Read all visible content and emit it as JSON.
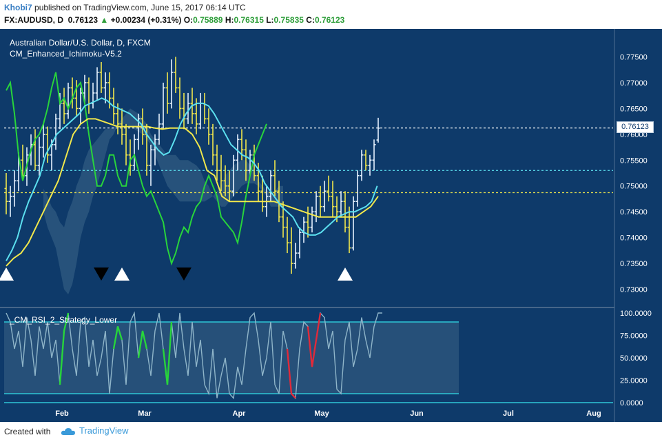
{
  "header": {
    "author": "Khobi7",
    "published": "published on TradingView.com, June 15, 2017 06:14 UTC",
    "symbol": "FX:AUDUSD, D",
    "last": "0.76123",
    "change": "+0.00234 (+0.31%)",
    "o_label": "O:",
    "o": "0.75889",
    "h_label": "H:",
    "h": "0.76315",
    "l_label": "L:",
    "l": "0.75835",
    "c_label": "C:",
    "c": "0.76123"
  },
  "legend": {
    "title": "Australian Dollar/U.S. Dollar, D, FXCM",
    "indicator": "CM_Enhanced_Ichimoku-V5.2",
    "lower_indicator": "_CM_RSI_2_Strategy_Lower"
  },
  "price_tag": "0.76123",
  "footer": {
    "created": "Created with",
    "brand": "TradingView"
  },
  "colors": {
    "panel_bg": "#0e3a6a",
    "cloud": "#3d6688",
    "cloud_dark": "#5a6e78",
    "tenkan": "#5ce1f0",
    "kijun": "#f2e84b",
    "chikou": "#28d43b",
    "bar_up": "#e6f2ff",
    "bar_down": "#f2e84b",
    "rsi_line": "#8fb5c9",
    "rsi_overbought": "#e02a3a",
    "rsi_oversold": "#28d43b",
    "grid_level": "#2fc6d6"
  },
  "chart_data": [
    {
      "type": "candlestick",
      "title": "Australian Dollar/U.S. Dollar, D, FXCM",
      "x_tick_labels": [
        "Feb",
        "Mar",
        "Apr",
        "May",
        "Jun",
        "Jul",
        "Aug"
      ],
      "y_tick_labels": [
        "0.77500",
        "0.77000",
        "0.76500",
        "0.76000",
        "0.75500",
        "0.75000",
        "0.74500",
        "0.74000",
        "0.73500",
        "0.73000"
      ],
      "ylim": [
        0.727,
        0.778
      ],
      "bars": [
        [
          0.7495,
          0.7525,
          0.7445,
          0.747
        ],
        [
          0.747,
          0.75,
          0.744,
          0.748
        ],
        [
          0.748,
          0.753,
          0.746,
          0.751
        ],
        [
          0.751,
          0.7565,
          0.749,
          0.755
        ],
        [
          0.755,
          0.758,
          0.751,
          0.752
        ],
        [
          0.752,
          0.7575,
          0.75,
          0.756
        ],
        [
          0.756,
          0.76,
          0.754,
          0.758
        ],
        [
          0.758,
          0.761,
          0.753,
          0.754
        ],
        [
          0.754,
          0.7595,
          0.752,
          0.7575
        ],
        [
          0.7575,
          0.762,
          0.7555,
          0.76
        ],
        [
          0.76,
          0.7615,
          0.7545,
          0.756
        ],
        [
          0.756,
          0.759,
          0.753,
          0.758
        ],
        [
          0.758,
          0.764,
          0.757,
          0.763
        ],
        [
          0.763,
          0.768,
          0.761,
          0.766
        ],
        [
          0.766,
          0.769,
          0.762,
          0.764
        ],
        [
          0.764,
          0.77,
          0.763,
          0.769
        ],
        [
          0.769,
          0.771,
          0.765,
          0.767
        ],
        [
          0.767,
          0.7705,
          0.7635,
          0.765
        ],
        [
          0.765,
          0.769,
          0.762,
          0.768
        ],
        [
          0.768,
          0.7715,
          0.766,
          0.77
        ],
        [
          0.77,
          0.771,
          0.764,
          0.766
        ],
        [
          0.766,
          0.77,
          0.765,
          0.768
        ],
        [
          0.768,
          0.773,
          0.7665,
          0.772
        ],
        [
          0.772,
          0.774,
          0.768,
          0.769
        ],
        [
          0.769,
          0.772,
          0.766,
          0.77
        ],
        [
          0.77,
          0.772,
          0.765,
          0.767
        ],
        [
          0.767,
          0.769,
          0.762,
          0.764
        ],
        [
          0.764,
          0.766,
          0.76,
          0.762
        ],
        [
          0.762,
          0.765,
          0.758,
          0.76
        ],
        [
          0.76,
          0.762,
          0.754,
          0.756
        ],
        [
          0.756,
          0.759,
          0.752,
          0.754
        ],
        [
          0.754,
          0.76,
          0.753,
          0.759
        ],
        [
          0.759,
          0.764,
          0.757,
          0.763
        ],
        [
          0.763,
          0.765,
          0.758,
          0.76
        ],
        [
          0.76,
          0.762,
          0.752,
          0.754
        ],
        [
          0.754,
          0.758,
          0.75,
          0.757
        ],
        [
          0.757,
          0.76,
          0.754,
          0.759
        ],
        [
          0.759,
          0.764,
          0.758,
          0.762
        ],
        [
          0.762,
          0.77,
          0.761,
          0.769
        ],
        [
          0.769,
          0.772,
          0.764,
          0.766
        ],
        [
          0.766,
          0.7745,
          0.765,
          0.772
        ],
        [
          0.772,
          0.775,
          0.768,
          0.769
        ],
        [
          0.769,
          0.771,
          0.763,
          0.765
        ],
        [
          0.765,
          0.768,
          0.761,
          0.763
        ],
        [
          0.763,
          0.768,
          0.762,
          0.766
        ],
        [
          0.766,
          0.769,
          0.762,
          0.764
        ],
        [
          0.764,
          0.767,
          0.76,
          0.762
        ],
        [
          0.762,
          0.768,
          0.761,
          0.766
        ],
        [
          0.766,
          0.768,
          0.762,
          0.763
        ],
        [
          0.763,
          0.765,
          0.758,
          0.76
        ],
        [
          0.76,
          0.762,
          0.754,
          0.756
        ],
        [
          0.756,
          0.758,
          0.751,
          0.753
        ],
        [
          0.753,
          0.756,
          0.749,
          0.751
        ],
        [
          0.751,
          0.754,
          0.748,
          0.75
        ],
        [
          0.75,
          0.753,
          0.747,
          0.749
        ],
        [
          0.749,
          0.756,
          0.748,
          0.755
        ],
        [
          0.755,
          0.76,
          0.753,
          0.759
        ],
        [
          0.759,
          0.761,
          0.755,
          0.757
        ],
        [
          0.757,
          0.759,
          0.751,
          0.753
        ],
        [
          0.753,
          0.757,
          0.752,
          0.756
        ],
        [
          0.756,
          0.758,
          0.751,
          0.752
        ],
        [
          0.752,
          0.7545,
          0.747,
          0.749
        ],
        [
          0.749,
          0.752,
          0.745,
          0.746
        ],
        [
          0.746,
          0.75,
          0.744,
          0.748
        ],
        [
          0.748,
          0.753,
          0.747,
          0.752
        ],
        [
          0.752,
          0.755,
          0.748,
          0.749
        ],
        [
          0.749,
          0.751,
          0.743,
          0.744
        ],
        [
          0.744,
          0.747,
          0.74,
          0.742
        ],
        [
          0.742,
          0.744,
          0.737,
          0.739
        ],
        [
          0.739,
          0.742,
          0.733,
          0.735
        ],
        [
          0.735,
          0.739,
          0.734,
          0.737
        ],
        [
          0.737,
          0.742,
          0.736,
          0.741
        ],
        [
          0.741,
          0.744,
          0.739,
          0.743
        ],
        [
          0.743,
          0.746,
          0.74,
          0.742
        ],
        [
          0.742,
          0.746,
          0.741,
          0.745
        ],
        [
          0.745,
          0.749,
          0.743,
          0.748
        ],
        [
          0.748,
          0.75,
          0.744,
          0.746
        ],
        [
          0.746,
          0.751,
          0.745,
          0.749
        ],
        [
          0.749,
          0.752,
          0.747,
          0.748
        ],
        [
          0.748,
          0.751,
          0.744,
          0.746
        ],
        [
          0.746,
          0.748,
          0.743,
          0.745
        ],
        [
          0.745,
          0.749,
          0.744,
          0.747
        ],
        [
          0.747,
          0.749,
          0.741,
          0.742
        ],
        [
          0.742,
          0.746,
          0.737,
          0.738
        ],
        [
          0.738,
          0.748,
          0.7375,
          0.747
        ],
        [
          0.747,
          0.753,
          0.746,
          0.752
        ],
        [
          0.752,
          0.757,
          0.751,
          0.756
        ],
        [
          0.756,
          0.757,
          0.753,
          0.754
        ],
        [
          0.754,
          0.756,
          0.752,
          0.755
        ],
        [
          0.755,
          0.759,
          0.753,
          0.758
        ],
        [
          0.7589,
          0.7632,
          0.7584,
          0.7612
        ]
      ],
      "tenkan": [
        0.7355,
        0.7375,
        0.74,
        0.744,
        0.747,
        0.7495,
        0.752,
        0.756,
        0.758,
        0.76,
        0.761,
        0.762,
        0.763,
        0.764,
        0.7655,
        0.766,
        0.7665,
        0.767,
        0.7665,
        0.7655,
        0.765,
        0.7645,
        0.764,
        0.763,
        0.762,
        0.76,
        0.7585,
        0.757,
        0.756,
        0.7565,
        0.759,
        0.762,
        0.764,
        0.7655,
        0.766,
        0.766,
        0.7655,
        0.764,
        0.762,
        0.76,
        0.758,
        0.757,
        0.756,
        0.7555,
        0.7545,
        0.753,
        0.7505,
        0.749,
        0.7475,
        0.746,
        0.745,
        0.744,
        0.742,
        0.741,
        0.7405,
        0.7405,
        0.741,
        0.742,
        0.743,
        0.744,
        0.7445,
        0.745,
        0.745,
        0.7455,
        0.746,
        0.747,
        0.75
      ],
      "kijun": [
        0.7345,
        0.736,
        0.737,
        0.739,
        0.742,
        0.745,
        0.748,
        0.751,
        0.7555,
        0.76,
        0.762,
        0.763,
        0.763,
        0.7625,
        0.762,
        0.7615,
        0.7615,
        0.7615,
        0.7615,
        0.7615,
        0.7612,
        0.761,
        0.7612,
        0.7612,
        0.7612,
        0.76,
        0.7575,
        0.753,
        0.752,
        0.748,
        0.747,
        0.747,
        0.747,
        0.747,
        0.747,
        0.747,
        0.747,
        0.7465,
        0.746,
        0.7455,
        0.745,
        0.7445,
        0.744,
        0.744,
        0.744,
        0.744,
        0.744,
        0.744,
        0.745,
        0.746,
        0.748
      ],
      "chikou": [
        0.7685,
        0.77,
        0.764,
        0.756,
        0.751,
        0.754,
        0.757,
        0.759,
        0.76,
        0.762,
        0.765,
        0.769,
        0.772,
        0.766,
        0.767,
        0.765,
        0.767,
        0.769,
        0.77,
        0.766,
        0.76,
        0.755,
        0.75,
        0.75,
        0.752,
        0.756,
        0.756,
        0.752,
        0.75,
        0.75,
        0.755,
        0.756,
        0.753,
        0.75,
        0.748,
        0.749,
        0.747,
        0.745,
        0.743,
        0.738,
        0.735,
        0.737,
        0.74,
        0.742,
        0.741,
        0.744,
        0.746,
        0.747,
        0.75,
        0.752,
        0.75,
        0.748,
        0.744,
        0.743,
        0.742,
        0.741,
        0.739,
        0.743,
        0.748,
        0.752,
        0.756,
        0.758,
        0.76,
        0.762
      ],
      "cloud_a": [
        0.7495,
        0.748,
        0.746,
        0.745,
        0.743,
        0.742,
        0.745,
        0.747,
        0.75,
        0.752,
        0.755,
        0.757,
        0.758,
        0.759,
        0.76,
        0.761,
        0.761,
        0.7615,
        0.762,
        0.762,
        0.762,
        0.7615,
        0.761,
        0.7605,
        0.76,
        0.759,
        0.758,
        0.756,
        0.754,
        0.752,
        0.75,
        0.749,
        0.748,
        0.747,
        0.747,
        0.747,
        0.747,
        0.747,
        0.747,
        0.747,
        0.7475,
        0.748,
        0.749,
        0.75,
        0.752,
        0.753,
        0.754,
        0.7545,
        0.755,
        0.755,
        0.754,
        0.753,
        0.751,
        0.75,
        0.749,
        0.749,
        0.749,
        0.75,
        0.75
      ],
      "cloud_b": [
        0.745,
        0.742,
        0.74,
        0.738,
        0.734,
        0.73,
        0.729,
        0.731,
        0.735,
        0.74,
        0.743,
        0.745,
        0.748,
        0.75,
        0.753,
        0.756,
        0.759,
        0.76,
        0.762,
        0.763,
        0.764,
        0.765,
        0.7645,
        0.764,
        0.763,
        0.762,
        0.76,
        0.759,
        0.758,
        0.757,
        0.756,
        0.756,
        0.756,
        0.755,
        0.755,
        0.755,
        0.7545,
        0.754,
        0.753,
        0.751,
        0.75,
        0.748,
        0.747,
        0.746,
        0.746,
        0.747,
        0.748,
        0.749,
        0.75,
        0.7505,
        0.7505,
        0.7505,
        0.75,
        0.749,
        0.748,
        0.746,
        0.746,
        0.746,
        0.746
      ],
      "levels": [
        {
          "value": 0.76123,
          "name": "last"
        },
        {
          "value": 0.753
        },
        {
          "value": 0.7487
        }
      ],
      "signals": [
        {
          "type": "up",
          "bar": 0
        },
        {
          "type": "down",
          "bar": 23
        },
        {
          "type": "up",
          "bar": 28
        },
        {
          "type": "down",
          "bar": 43
        },
        {
          "type": "up",
          "bar": 82
        }
      ]
    },
    {
      "type": "line",
      "title": "_CM_RSI_2_Strategy_Lower",
      "y_tick_labels": [
        "100.0000",
        "75.0000",
        "50.0000",
        "25.0000",
        "0.0000"
      ],
      "ylim": [
        0,
        100
      ],
      "levels": [
        90,
        10,
        0
      ],
      "values": [
        100,
        90,
        60,
        80,
        40,
        95,
        70,
        30,
        85,
        60,
        90,
        50,
        70,
        20,
        80,
        100,
        60,
        30,
        90,
        95,
        40,
        70,
        30,
        50,
        80,
        10,
        60,
        85,
        70,
        20,
        90,
        100,
        50,
        80,
        60,
        30,
        80,
        100,
        60,
        20,
        90,
        50,
        100,
        60,
        30,
        90,
        40,
        70,
        20,
        10,
        60,
        5,
        30,
        50,
        10,
        5,
        40,
        20,
        60,
        95,
        100,
        70,
        30,
        50,
        90,
        20,
        10,
        80,
        60,
        10,
        5,
        60,
        90,
        85,
        40,
        70,
        100,
        95,
        60,
        80,
        15,
        10,
        70,
        90,
        40,
        60,
        95,
        70,
        50,
        85,
        100,
        100
      ],
      "overbought_segments": [
        [
          68,
          70
        ],
        [
          73,
          76
        ]
      ],
      "oversold_segments": [
        [
          13,
          15
        ],
        [
          26,
          28
        ],
        [
          32,
          34
        ],
        [
          38,
          40
        ]
      ]
    }
  ]
}
